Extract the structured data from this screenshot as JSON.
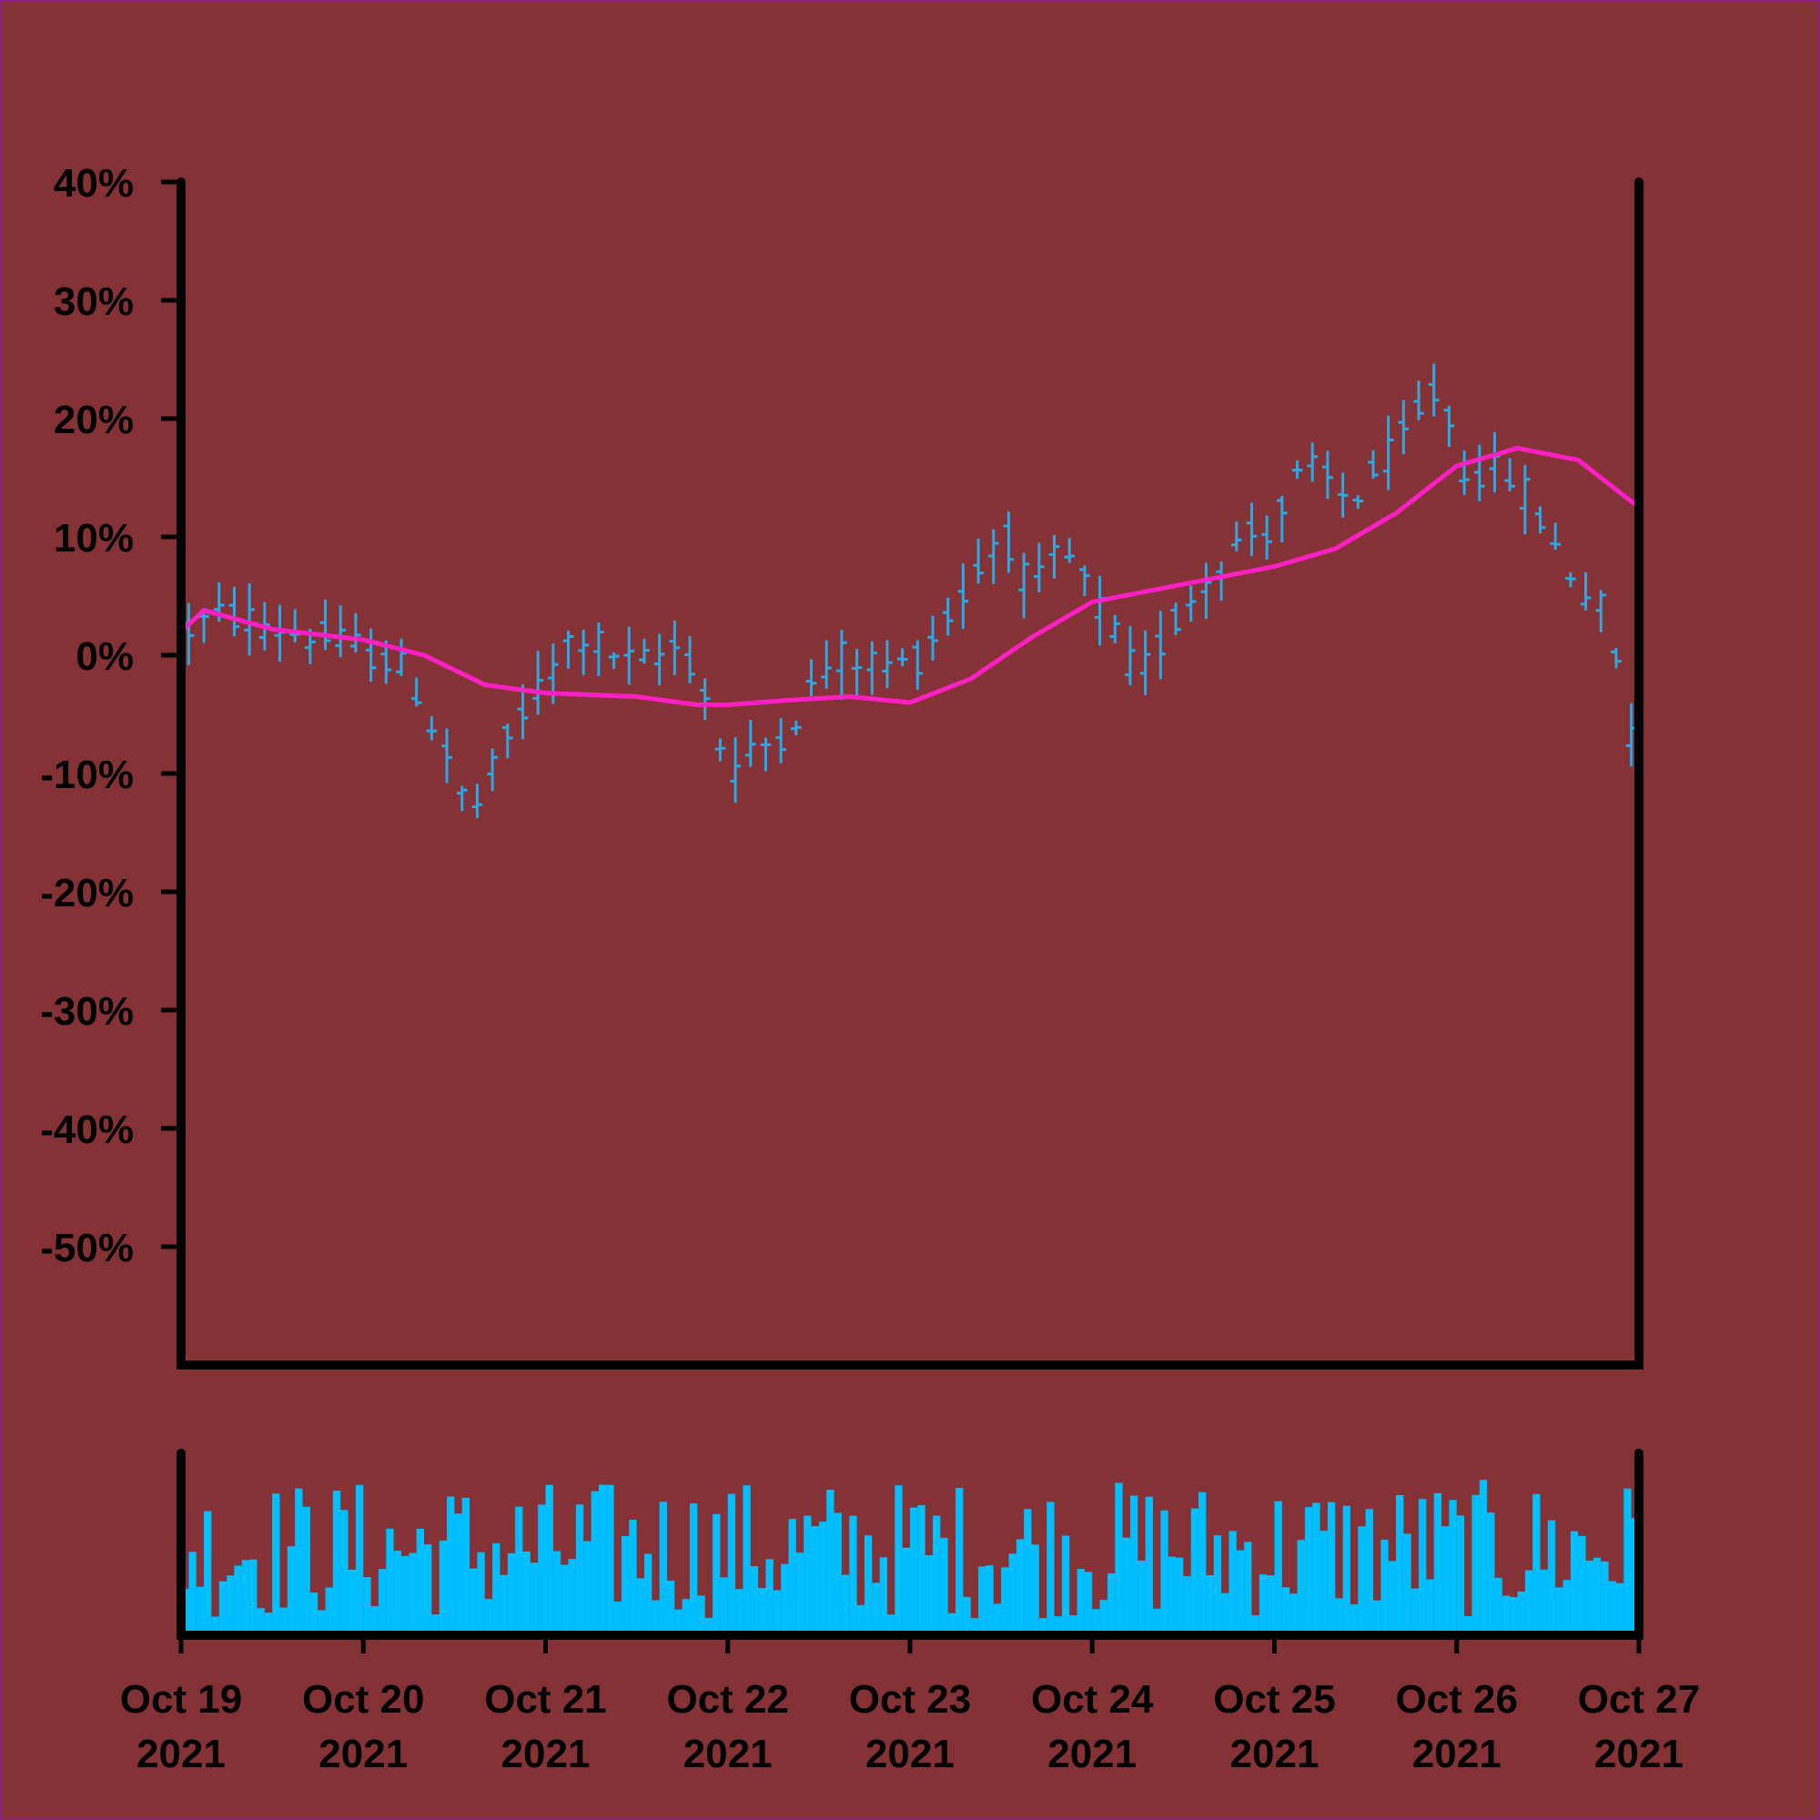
{
  "chart_data": {
    "type": "ohlc",
    "title": "",
    "xlabel": "",
    "ylabel": "",
    "ylim": [
      -60,
      40
    ],
    "y_ticks": [
      "40%",
      "30%",
      "20%",
      "10%",
      "0%",
      "-10%",
      "-20%",
      "-30%",
      "-40%",
      "-50%"
    ],
    "y_tick_values": [
      40,
      30,
      20,
      10,
      0,
      -10,
      -20,
      -30,
      -40,
      -50
    ],
    "x_range": [
      "2021-10-19",
      "2021-10-27"
    ],
    "x_ticks": [
      {
        "line1": "Oct 19",
        "line2": "2021"
      },
      {
        "line1": "Oct 20",
        "line2": "2021"
      },
      {
        "line1": "Oct 21",
        "line2": "2021"
      },
      {
        "line1": "Oct 22",
        "line2": "2021"
      },
      {
        "line1": "Oct 23",
        "line2": "2021"
      },
      {
        "line1": "Oct 24",
        "line2": "2021"
      },
      {
        "line1": "Oct 25",
        "line2": "2021"
      },
      {
        "line1": "Oct 26",
        "line2": "2021"
      },
      {
        "line1": "Oct 27",
        "line2": "2021"
      }
    ],
    "grid": false,
    "colors": {
      "background": "#843235",
      "bars": "#29a9e6",
      "moving_average": "#ff1fc4",
      "volume": "#00bfff",
      "axes": "#000000"
    },
    "price_anchors": [
      [
        "2021-10-19T00:00",
        2.0
      ],
      [
        "2021-10-19T06:00",
        3.5
      ],
      [
        "2021-10-19T18:00",
        1.5
      ],
      [
        "2021-10-20T00:00",
        0.5
      ],
      [
        "2021-10-20T06:00",
        -1.5
      ],
      [
        "2021-10-20T12:00",
        -10.0
      ],
      [
        "2021-10-20T14:00",
        -14.0
      ],
      [
        "2021-10-20T20:00",
        -6.0
      ],
      [
        "2021-10-21T00:00",
        -2.0
      ],
      [
        "2021-10-21T04:00",
        2.0
      ],
      [
        "2021-10-21T12:00",
        -1.0
      ],
      [
        "2021-10-21T18:00",
        1.0
      ],
      [
        "2021-10-21T22:00",
        -5.0
      ],
      [
        "2021-10-22T00:00",
        -10.0
      ],
      [
        "2021-10-22T08:00",
        -6.0
      ],
      [
        "2021-10-22T14:00",
        0.0
      ],
      [
        "2021-10-23T00:00",
        -1.0
      ],
      [
        "2021-10-23T08:00",
        6.0
      ],
      [
        "2021-10-23T12:00",
        11.0
      ],
      [
        "2021-10-23T16:00",
        5.0
      ],
      [
        "2021-10-23T20:00",
        9.0
      ],
      [
        "2021-10-24T00:00",
        5.0
      ],
      [
        "2021-10-24T06:00",
        -2.0
      ],
      [
        "2021-10-24T14:00",
        6.0
      ],
      [
        "2021-10-24T20:00",
        10.0
      ],
      [
        "2021-10-25T00:00",
        11.0
      ],
      [
        "2021-10-25T04:00",
        16.0
      ],
      [
        "2021-10-25T10:00",
        13.0
      ],
      [
        "2021-10-25T18:00",
        19.0
      ],
      [
        "2021-10-25T22:00",
        23.0
      ],
      [
        "2021-10-26T00:00",
        16.0
      ],
      [
        "2021-10-26T08:00",
        15.0
      ],
      [
        "2021-10-26T14:00",
        8.0
      ],
      [
        "2021-10-26T20:00",
        3.0
      ],
      [
        "2021-10-27T00:00",
        -10.0
      ]
    ],
    "moving_average_anchors": [
      [
        "2021-10-19T00:00",
        2.0
      ],
      [
        "2021-10-19T03:00",
        3.8
      ],
      [
        "2021-10-19T12:00",
        2.2
      ],
      [
        "2021-10-20T00:00",
        1.3
      ],
      [
        "2021-10-20T08:00",
        0.0
      ],
      [
        "2021-10-20T16:00",
        -2.5
      ],
      [
        "2021-10-21T00:00",
        -3.2
      ],
      [
        "2021-10-21T12:00",
        -3.5
      ],
      [
        "2021-10-21T20:00",
        -4.2
      ],
      [
        "2021-10-22T00:00",
        -4.2
      ],
      [
        "2021-10-22T08:00",
        -3.8
      ],
      [
        "2021-10-22T16:00",
        -3.5
      ],
      [
        "2021-10-23T00:00",
        -4.0
      ],
      [
        "2021-10-23T08:00",
        -2.0
      ],
      [
        "2021-10-23T16:00",
        1.5
      ],
      [
        "2021-10-24T00:00",
        4.5
      ],
      [
        "2021-10-24T08:00",
        5.5
      ],
      [
        "2021-10-24T16:00",
        6.5
      ],
      [
        "2021-10-25T00:00",
        7.5
      ],
      [
        "2021-10-25T08:00",
        9.0
      ],
      [
        "2021-10-25T16:00",
        12.0
      ],
      [
        "2021-10-26T00:00",
        16.0
      ],
      [
        "2021-10-26T08:00",
        17.5
      ],
      [
        "2021-10-26T16:00",
        16.5
      ],
      [
        "2021-10-27T00:00",
        12.5
      ]
    ],
    "bar_interval_hours": 2,
    "volume_axis_labels": false
  }
}
